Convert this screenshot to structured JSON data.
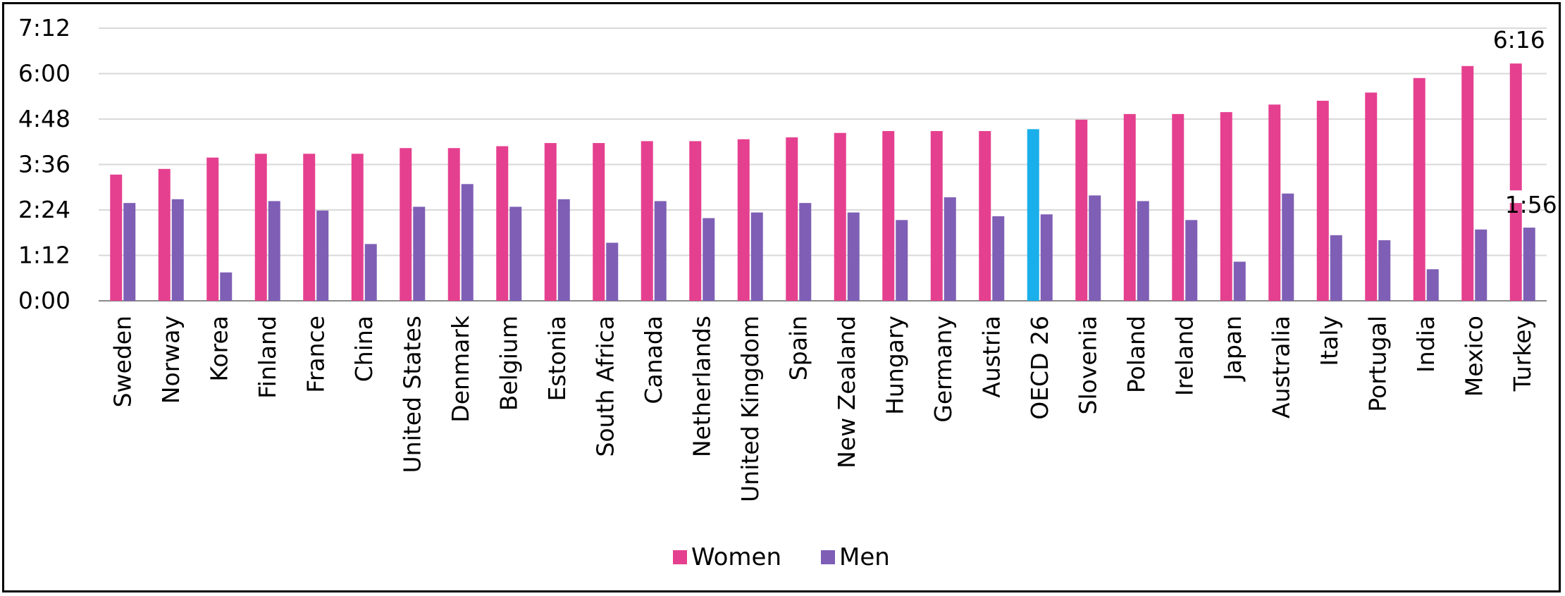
{
  "chart_data": {
    "type": "bar",
    "title": "",
    "xlabel": "",
    "ylabel": "",
    "y_unit": "hours:minutes",
    "ylim_minutes": [
      0,
      432
    ],
    "yticks": [
      "0:00",
      "1:12",
      "2:24",
      "3:36",
      "4:48",
      "6:00",
      "7:12"
    ],
    "grid": true,
    "legend_position": "bottom",
    "categories": [
      "Sweden",
      "Norway",
      "Korea",
      "Finland",
      "France",
      "China",
      "United States",
      "Denmark",
      "Belgium",
      "Estonia",
      "South Africa",
      "Canada",
      "Netherlands",
      "United Kingdom",
      "Spain",
      "New Zealand",
      "Hungary",
      "Germany",
      "Austria",
      "OECD 26",
      "Slovenia",
      "Poland",
      "Ireland",
      "Japan",
      "Australia",
      "Italy",
      "Portugal",
      "India",
      "Mexico",
      "Turkey"
    ],
    "highlight_category": "OECD 26",
    "series": [
      {
        "name": "Women",
        "color": "#E5408F",
        "highlight_color": "#1AAFEA",
        "values_minutes": [
          200,
          209,
          227,
          233,
          233,
          233,
          242,
          242,
          245,
          250,
          250,
          253,
          253,
          256,
          259,
          266,
          269,
          269,
          269,
          272,
          287,
          296,
          296,
          299,
          311,
          317,
          330,
          353,
          372,
          376
        ]
      },
      {
        "name": "Men",
        "color": "#7E5FB5",
        "values_minutes": [
          155,
          161,
          45,
          158,
          143,
          90,
          149,
          185,
          149,
          161,
          92,
          158,
          131,
          140,
          155,
          140,
          128,
          164,
          134,
          137,
          167,
          158,
          128,
          62,
          170,
          104,
          96,
          50,
          113,
          116
        ]
      }
    ],
    "annotations": [
      {
        "text": "6:16",
        "category": "Turkey",
        "series": "Women"
      },
      {
        "text": "1:56",
        "category": "Turkey",
        "series": "Men"
      }
    ]
  }
}
